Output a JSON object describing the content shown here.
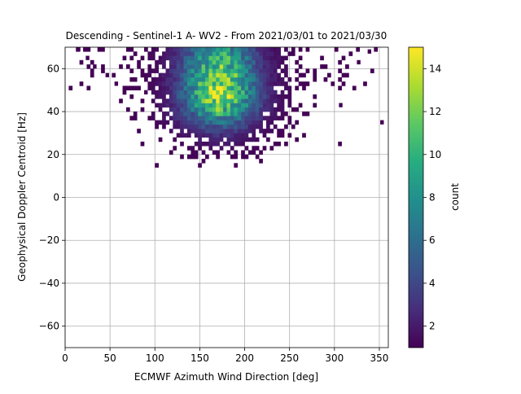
{
  "chart_data": {
    "type": "heatmap",
    "title": "Descending - Sentinel-1 A- WV2 - From 2021/03/01 to 2021/03/30",
    "xlabel": "ECMWF Azimuth Wind Direction [deg]",
    "ylabel": "Geophysical Doppler Centroid [Hz]",
    "xlim": [
      0,
      360
    ],
    "ylim": [
      -70,
      70
    ],
    "xticks": [
      0,
      50,
      100,
      150,
      200,
      250,
      300,
      350
    ],
    "yticks": [
      -60,
      -40,
      -20,
      0,
      20,
      40,
      60
    ],
    "grid": true,
    "colormap": "viridis",
    "colorbar": {
      "label": "count",
      "range": [
        1,
        15
      ],
      "ticks": [
        2,
        4,
        6,
        8,
        10,
        12,
        14
      ]
    },
    "bin_size": {
      "x": 4,
      "y": 2
    },
    "density_model": {
      "center_x": 172,
      "center_y": 48,
      "peak": 15,
      "sigma_x": 40,
      "sigma_y_below": 14,
      "sigma_y_above": 30,
      "y_min": 14,
      "y_max": 70,
      "x_min": 4,
      "x_max": 352
    },
    "outliers": [
      [
        351,
        34
      ],
      [
        337,
        67
      ],
      [
        325,
        62
      ],
      [
        305,
        42
      ],
      [
        13,
        68
      ],
      [
        23,
        64
      ],
      [
        31,
        60
      ],
      [
        45,
        56
      ],
      [
        55,
        52
      ],
      [
        88,
        48
      ]
    ]
  }
}
